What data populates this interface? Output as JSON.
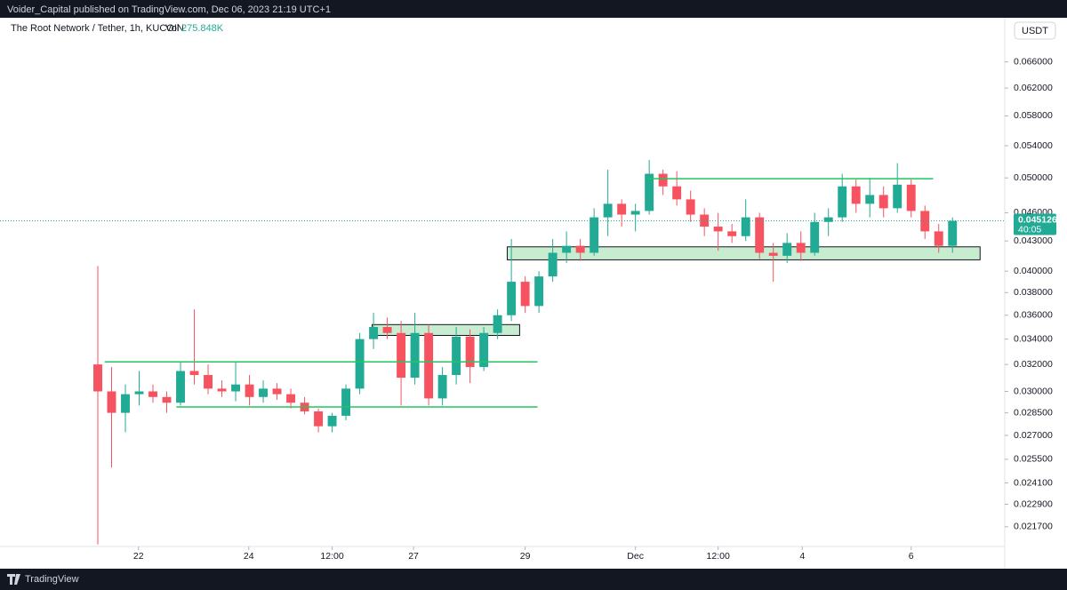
{
  "header": {
    "published": "Voider_Capital published on TradingView.com, Dec 06, 2023 21:19 UTC+1",
    "symbol": "The Root Network / Tether, 1h, KUCOIN",
    "volume_label": "Vol",
    "volume": "275.848K",
    "currency": "USDT",
    "brand": "TradingView"
  },
  "chart_data": {
    "type": "candlestick",
    "log_scale": true,
    "up_color": "#22ab94",
    "down_color": "#f7525f",
    "categories": [
      null,
      null,
      null,
      null,
      null,
      null,
      null,
      null,
      null,
      null,
      null,
      null,
      null,
      null,
      null,
      null,
      null,
      null,
      null,
      null,
      null,
      null,
      null,
      null,
      null,
      null,
      null,
      null,
      null,
      null,
      null,
      null,
      null,
      null,
      null,
      null,
      null,
      null,
      null,
      null,
      null,
      null,
      null,
      null,
      null,
      null,
      null,
      null,
      null,
      null,
      null,
      null,
      null,
      null,
      null,
      null,
      null,
      null,
      null,
      null,
      null,
      null,
      null
    ],
    "open": [
      0.032,
      0.03,
      0.0285,
      0.0298,
      0.03,
      0.0296,
      0.0292,
      0.0315,
      0.0312,
      0.0302,
      0.03,
      0.0305,
      0.0296,
      0.0302,
      0.0298,
      0.0292,
      0.0286,
      0.0276,
      0.0283,
      0.0302,
      0.034,
      0.035,
      0.0345,
      0.031,
      0.0345,
      0.0295,
      0.0312,
      0.0342,
      0.0318,
      0.0345,
      0.036,
      0.039,
      0.0368,
      0.0395,
      0.0418,
      0.0425,
      0.0418,
      0.0455,
      0.047,
      0.0458,
      0.0462,
      0.0505,
      0.049,
      0.0475,
      0.0458,
      0.0445,
      0.044,
      0.0435,
      0.0455,
      0.0418,
      0.0415,
      0.0428,
      0.0418,
      0.045,
      0.0455,
      0.049,
      0.047,
      0.048,
      0.0465,
      0.0492,
      0.0462,
      0.044,
      0.0425
    ],
    "high": [
      0.0405,
      0.0318,
      0.0305,
      0.0315,
      0.0305,
      0.03,
      0.0322,
      0.0365,
      0.032,
      0.0308,
      0.0322,
      0.0312,
      0.0308,
      0.0306,
      0.0302,
      0.0296,
      0.0288,
      0.0285,
      0.0305,
      0.0345,
      0.0362,
      0.0358,
      0.0355,
      0.0362,
      0.0352,
      0.0318,
      0.035,
      0.0348,
      0.035,
      0.0365,
      0.0432,
      0.0395,
      0.04,
      0.0432,
      0.044,
      0.0432,
      0.0465,
      0.051,
      0.0475,
      0.047,
      0.0522,
      0.051,
      0.0508,
      0.0485,
      0.0465,
      0.046,
      0.0448,
      0.0475,
      0.046,
      0.0428,
      0.0438,
      0.044,
      0.046,
      0.0465,
      0.0505,
      0.0498,
      0.05,
      0.049,
      0.0518,
      0.0498,
      0.0468,
      0.0448,
      0.0455
    ],
    "low": [
      0.0208,
      0.025,
      0.0272,
      0.029,
      0.0292,
      0.0285,
      0.029,
      0.0305,
      0.0298,
      0.0296,
      0.0293,
      0.029,
      0.0292,
      0.0294,
      0.0288,
      0.0284,
      0.0272,
      0.0272,
      0.028,
      0.0298,
      0.0332,
      0.034,
      0.029,
      0.0305,
      0.029,
      0.029,
      0.0305,
      0.0306,
      0.0315,
      0.034,
      0.0355,
      0.0362,
      0.0362,
      0.039,
      0.0408,
      0.041,
      0.0415,
      0.0435,
      0.0445,
      0.044,
      0.0458,
      0.048,
      0.0468,
      0.045,
      0.0435,
      0.042,
      0.0428,
      0.043,
      0.0412,
      0.039,
      0.0408,
      0.041,
      0.0415,
      0.0435,
      0.045,
      0.046,
      0.0455,
      0.0455,
      0.046,
      0.0455,
      0.0432,
      0.0418,
      0.0418
    ],
    "close": [
      0.03,
      0.0285,
      0.0298,
      0.03,
      0.0296,
      0.0292,
      0.0315,
      0.0312,
      0.0302,
      0.03,
      0.0305,
      0.0296,
      0.0302,
      0.0298,
      0.0292,
      0.0286,
      0.0276,
      0.0283,
      0.0302,
      0.034,
      0.035,
      0.0345,
      0.031,
      0.0345,
      0.0295,
      0.0312,
      0.0342,
      0.0318,
      0.0345,
      0.036,
      0.039,
      0.0368,
      0.0395,
      0.0418,
      0.0425,
      0.0418,
      0.0455,
      0.047,
      0.0458,
      0.0462,
      0.0505,
      0.049,
      0.0475,
      0.0458,
      0.0445,
      0.044,
      0.0435,
      0.0455,
      0.0418,
      0.0415,
      0.0428,
      0.0418,
      0.045,
      0.0455,
      0.049,
      0.047,
      0.048,
      0.0465,
      0.0492,
      0.0462,
      0.044,
      0.0425,
      0.045126
    ],
    "last_price": 0.045126,
    "countdown": "40:05",
    "xlim": [
      -0.5,
      64.5
    ],
    "ylim": [
      0.0207,
      0.07
    ],
    "xticks": [
      {
        "value": 2.95,
        "label": "22"
      },
      {
        "value": 10.95,
        "label": "24"
      },
      {
        "value": 17,
        "label": "12:00"
      },
      {
        "value": 22.9,
        "label": "27"
      },
      {
        "value": 31,
        "label": "29"
      },
      {
        "value": 39,
        "label": "Dec"
      },
      {
        "value": 45,
        "label": "12:00"
      },
      {
        "value": 51.1,
        "label": "4"
      },
      {
        "value": 59,
        "label": "6"
      }
    ],
    "yticks": [
      {
        "value": 0.0217,
        "label": "0.021700"
      },
      {
        "value": 0.0229,
        "label": "0.022900"
      },
      {
        "value": 0.0241,
        "label": "0.024100"
      },
      {
        "value": 0.0255,
        "label": "0.025500"
      },
      {
        "value": 0.027,
        "label": "0.027000"
      },
      {
        "value": 0.0285,
        "label": "0.028500"
      },
      {
        "value": 0.03,
        "label": "0.030000"
      },
      {
        "value": 0.032,
        "label": "0.032000"
      },
      {
        "value": 0.034,
        "label": "0.034000"
      },
      {
        "value": 0.036,
        "label": "0.036000"
      },
      {
        "value": 0.038,
        "label": "0.038000"
      },
      {
        "value": 0.04,
        "label": "0.040000"
      },
      {
        "value": 0.043,
        "label": "0.043000"
      },
      {
        "value": 0.046,
        "label": "0.046000"
      },
      {
        "value": 0.05,
        "label": "0.050000"
      },
      {
        "value": 0.054,
        "label": "0.054000"
      },
      {
        "value": 0.058,
        "label": "0.058000"
      },
      {
        "value": 0.062,
        "label": "0.062000"
      },
      {
        "value": 0.066,
        "label": "0.066000"
      }
    ],
    "drawings": [
      {
        "type": "hline",
        "start": 0.5,
        "end": 31.9,
        "price": 0.0322,
        "color": "#22c55e"
      },
      {
        "type": "hline",
        "start": 5.7,
        "end": 31.9,
        "price": 0.0289,
        "color": "#22c55e"
      },
      {
        "type": "hline",
        "start": 39.9,
        "end": 60.6,
        "price": 0.0499,
        "color": "#22c55e"
      },
      {
        "type": "box",
        "start": 19.9,
        "end": 30.6,
        "low": 0.0343,
        "high": 0.0352,
        "color": "#c8ecd0"
      },
      {
        "type": "box",
        "start": 29.7,
        "end": 64.0,
        "low": 0.0411,
        "high": 0.0424,
        "color": "#c8ecd0"
      }
    ]
  }
}
